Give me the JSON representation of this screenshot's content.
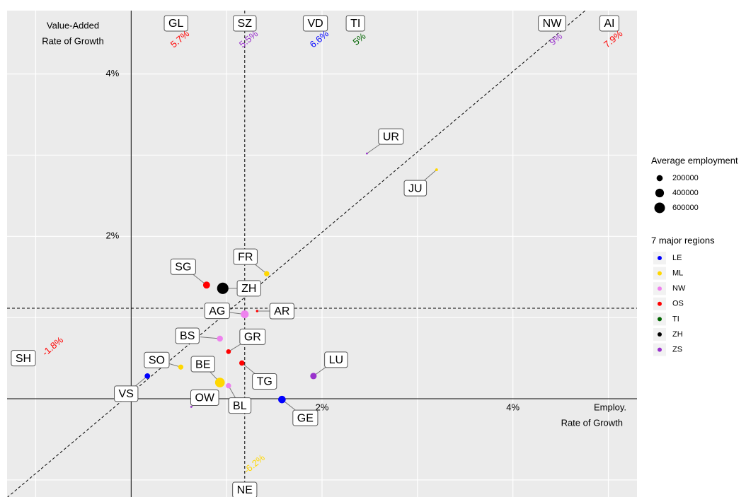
{
  "chart_data": {
    "type": "scatter",
    "ylabel_lines": [
      "Value-Added",
      "Rate of Growth"
    ],
    "xlabel_lines": [
      "Employ.",
      "Rate of Growth"
    ],
    "xlim": [
      -1.3,
      5.3
    ],
    "ylim": [
      -1.21,
      4.78
    ],
    "xticks": [
      {
        "value": 2,
        "label": "2%"
      },
      {
        "value": 4,
        "label": "4%"
      }
    ],
    "yticks": [
      {
        "value": 2,
        "label": "2%"
      },
      {
        "value": 4,
        "label": "4%"
      }
    ],
    "xgrid": [
      -1,
      0,
      1,
      2,
      3,
      4,
      5
    ],
    "ygrid": [
      -1,
      0,
      1,
      2,
      3,
      4
    ],
    "reference_lines": {
      "x": 1.19,
      "y": 1.115,
      "diagonal": {
        "slope": 0.99,
        "intercept": 0.07
      }
    },
    "regions": [
      {
        "name": "LE",
        "color": "#0000ff"
      },
      {
        "name": "ML",
        "color": "#ffd700"
      },
      {
        "name": "NW",
        "color": "#ee82ee"
      },
      {
        "name": "OS",
        "color": "#ff0000"
      },
      {
        "name": "TI",
        "color": "#006400"
      },
      {
        "name": "ZH",
        "color": "#000000"
      },
      {
        "name": "ZS",
        "color": "#9932cc"
      }
    ],
    "size_legend_title": "Average employment",
    "size_legend": [
      200000,
      400000,
      600000
    ],
    "region_legend_title": "7 major regions",
    "points": [
      {
        "label": "UR",
        "region": "ZS",
        "x": 2.47,
        "y": 3.02,
        "size": 20000
      },
      {
        "label": "JU",
        "region": "ML",
        "x": 3.2,
        "y": 2.82,
        "size": 40000
      },
      {
        "label": "FR",
        "region": "ML",
        "x": 1.42,
        "y": 1.54,
        "size": 150000
      },
      {
        "label": "SG",
        "region": "OS",
        "x": 0.79,
        "y": 1.4,
        "size": 260000
      },
      {
        "label": "ZH",
        "region": "ZH",
        "x": 0.96,
        "y": 1.36,
        "size": 690000
      },
      {
        "label": "AG",
        "region": "NW",
        "x": 1.19,
        "y": 1.04,
        "size": 330000
      },
      {
        "label": "AR",
        "region": "OS",
        "x": 1.32,
        "y": 1.08,
        "size": 30000
      },
      {
        "label": "BS",
        "region": "NW",
        "x": 0.93,
        "y": 0.74,
        "size": 190000
      },
      {
        "label": "GR",
        "region": "OS",
        "x": 1.02,
        "y": 0.58,
        "size": 120000
      },
      {
        "label": "SO",
        "region": "ML",
        "x": 0.52,
        "y": 0.39,
        "size": 140000
      },
      {
        "label": "TG",
        "region": "OS",
        "x": 1.16,
        "y": 0.44,
        "size": 150000
      },
      {
        "label": "LU",
        "region": "ZS",
        "x": 1.91,
        "y": 0.28,
        "size": 220000
      },
      {
        "label": "VS",
        "region": "LE",
        "x": 0.17,
        "y": 0.28,
        "size": 160000
      },
      {
        "label": "BE",
        "region": "ML",
        "x": 0.93,
        "y": 0.2,
        "size": 500000
      },
      {
        "label": "BL",
        "region": "NW",
        "x": 1.02,
        "y": 0.16,
        "size": 150000
      },
      {
        "label": "OW",
        "region": "ZS",
        "x": 0.63,
        "y": -0.1,
        "size": 20000
      },
      {
        "label": "GE",
        "region": "LE",
        "x": 1.58,
        "y": -0.01,
        "size": 300000
      }
    ],
    "off_scale": [
      {
        "label": "GL",
        "region": "OS",
        "x": 0.47,
        "y": 5.7,
        "value_label": "5.7%"
      },
      {
        "label": "SZ",
        "region": "ZS",
        "x": 1.19,
        "y": 5.5,
        "value_label": "5.5%"
      },
      {
        "label": "VD",
        "region": "LE",
        "x": 1.93,
        "y": 6.6,
        "value_label": "6.6%"
      },
      {
        "label": "TI",
        "region": "TI",
        "x": 2.35,
        "y": 5,
        "value_label": "5%"
      },
      {
        "label": "NW",
        "region": "ZS",
        "x": 4.41,
        "y": 9,
        "value_label": "9%"
      },
      {
        "label": "AI",
        "region": "OS",
        "x": 5.01,
        "y": 7.9,
        "value_label": "7.9%"
      },
      {
        "label": "NE",
        "region": "ML",
        "x": 1.19,
        "y": -6.2,
        "value_label": "-6.2%"
      },
      {
        "label": "SH",
        "region": "OS",
        "x": -1.8,
        "y": 0.5,
        "value_label": "-1.8%"
      }
    ]
  }
}
